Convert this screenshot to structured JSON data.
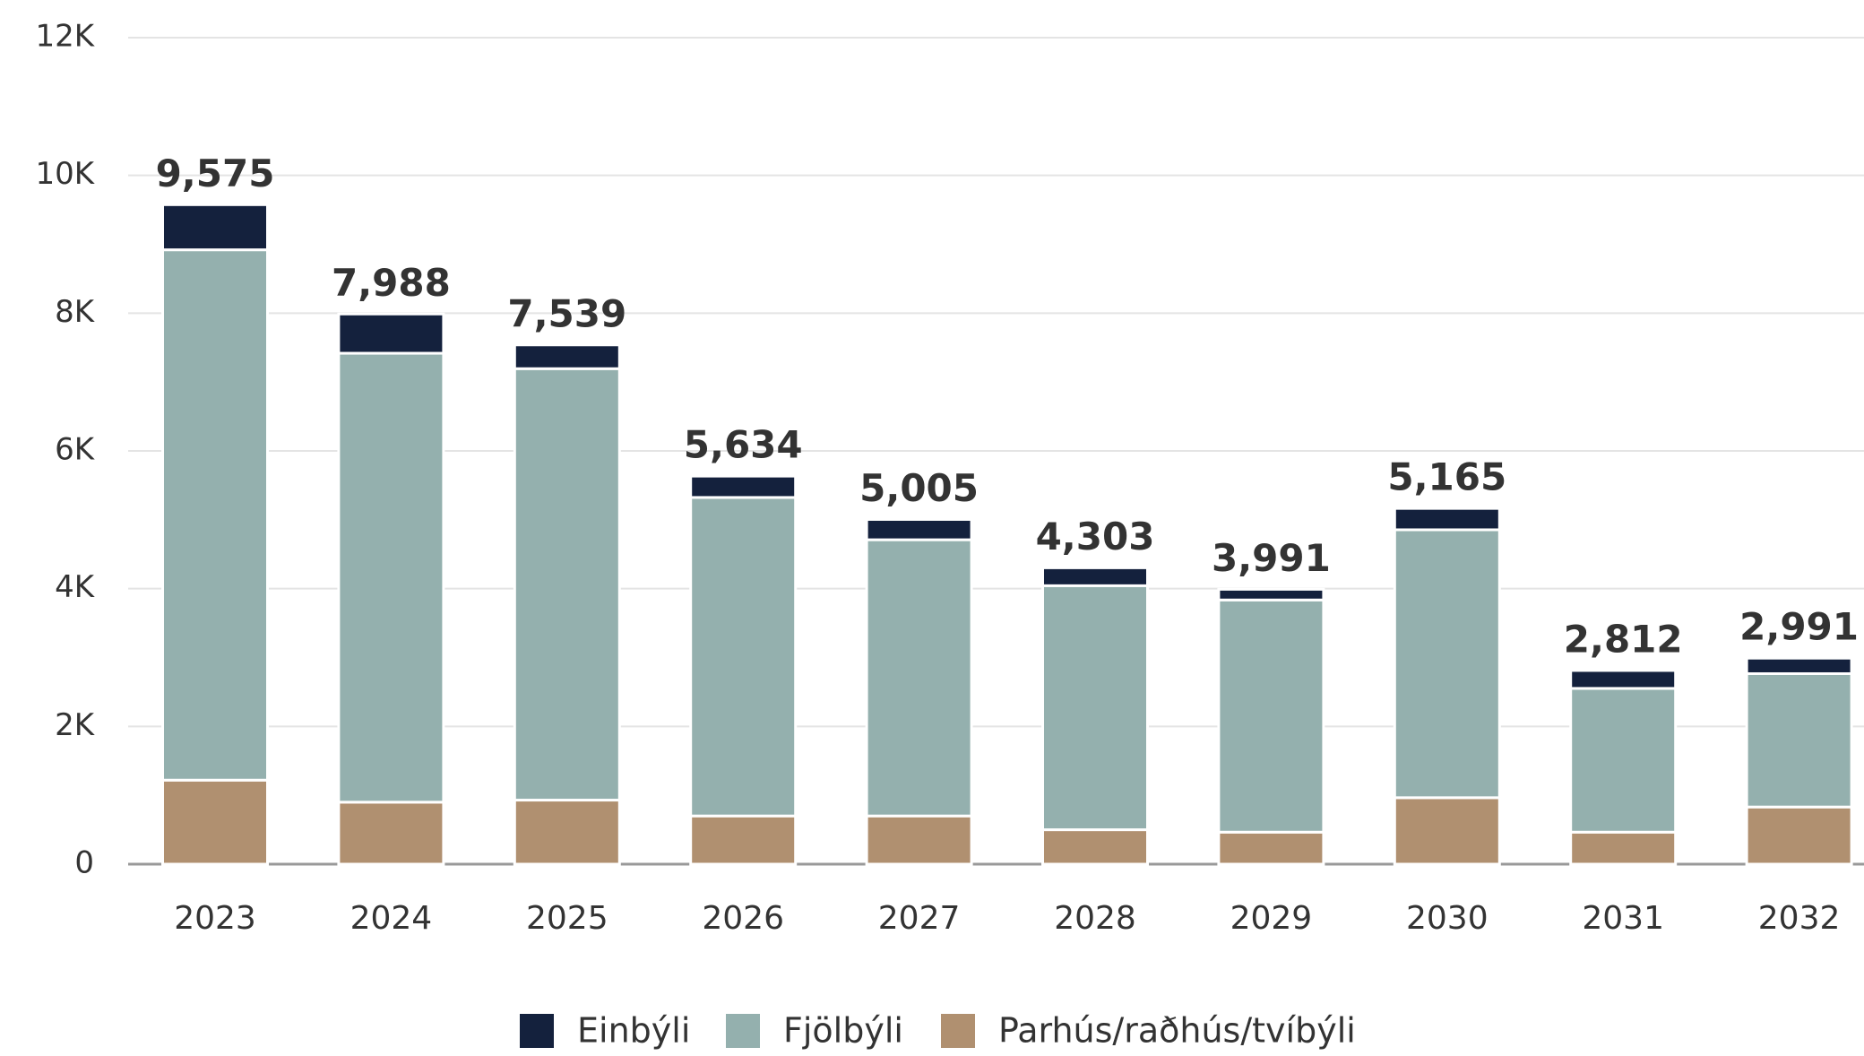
{
  "chart_data": {
    "type": "stacked_bar",
    "categories": [
      "2023",
      "2024",
      "2025",
      "2026",
      "2027",
      "2028",
      "2029",
      "2030",
      "2031",
      "2032"
    ],
    "series": [
      {
        "name": "Parhús/raðhús/tvíbýli",
        "color": "#b09070",
        "values": [
          1220,
          900,
          930,
          700,
          700,
          500,
          465,
          965,
          465,
          830
        ]
      },
      {
        "name": "Fjölbýli",
        "color": "#94b0ae",
        "values": [
          7700,
          6518,
          6264,
          4624,
          4010,
          3543,
          3371,
          3890,
          2087,
          1936
        ]
      },
      {
        "name": "Einbýli",
        "color": "#14213d",
        "values": [
          655,
          570,
          345,
          310,
          295,
          260,
          155,
          310,
          260,
          225
        ]
      }
    ],
    "totals": [
      9575,
      7988,
      7539,
      5634,
      5005,
      4303,
      3991,
      5165,
      2812,
      2991
    ],
    "total_labels": [
      "9,575",
      "7,988",
      "7,539",
      "5,634",
      "5,005",
      "4,303",
      "3,991",
      "5,165",
      "2,812",
      "2,991"
    ],
    "legend_order": [
      "Einbýli",
      "Fjölbýli",
      "Parhús/raðhús/tvíbýli"
    ],
    "ylim": [
      0,
      12000
    ],
    "yticks": [
      0,
      {
        "value": 2000,
        "label": "2K"
      },
      {
        "value": 4000,
        "label": "4K"
      },
      {
        "value": 6000,
        "label": "6K"
      },
      {
        "value": 8000,
        "label": "8K"
      },
      {
        "value": 10000,
        "label": "10K"
      },
      {
        "value": 12000,
        "label": "12K"
      }
    ],
    "grid": true,
    "legend": "bottom"
  }
}
